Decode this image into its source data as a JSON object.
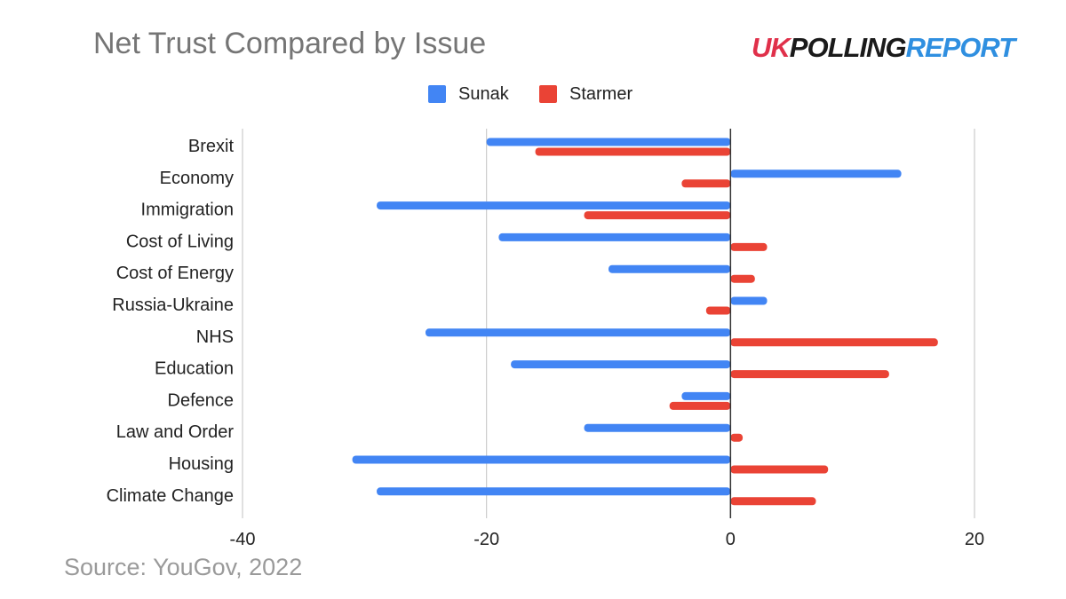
{
  "title": "Net Trust Compared by Issue",
  "logo": {
    "part1": "UK",
    "part2": "POLLING",
    "part3": "REPORT"
  },
  "source": "Source: YouGov, 2022",
  "colors": {
    "sunak": "#4285f4",
    "starmer": "#ea4335",
    "grid": "#cccccc",
    "zero_axis": "#333333"
  },
  "chart_data": {
    "type": "bar",
    "orientation": "horizontal",
    "title": "Net Trust Compared by Issue",
    "categories": [
      "Brexit",
      "Economy",
      "Immigration",
      "Cost of Living",
      "Cost of Energy",
      "Russia-Ukraine",
      "NHS",
      "Education",
      "Defence",
      "Law and Order",
      "Housing",
      "Climate Change"
    ],
    "series": [
      {
        "name": "Sunak",
        "color": "#4285f4",
        "values": [
          -20,
          14,
          -29,
          -19,
          -10,
          3,
          -25,
          -18,
          -4,
          -12,
          -31,
          -29
        ]
      },
      {
        "name": "Starmer",
        "color": "#ea4335",
        "values": [
          -16,
          -4,
          -12,
          3,
          2,
          -2,
          17,
          13,
          -5,
          1,
          8,
          7
        ]
      }
    ],
    "xlim": [
      -40,
      20
    ],
    "xticks": [
      "-40",
      "-20",
      "0",
      "20"
    ],
    "xlabel": "",
    "ylabel": "",
    "grid": "vertical",
    "legend": "top-center"
  }
}
